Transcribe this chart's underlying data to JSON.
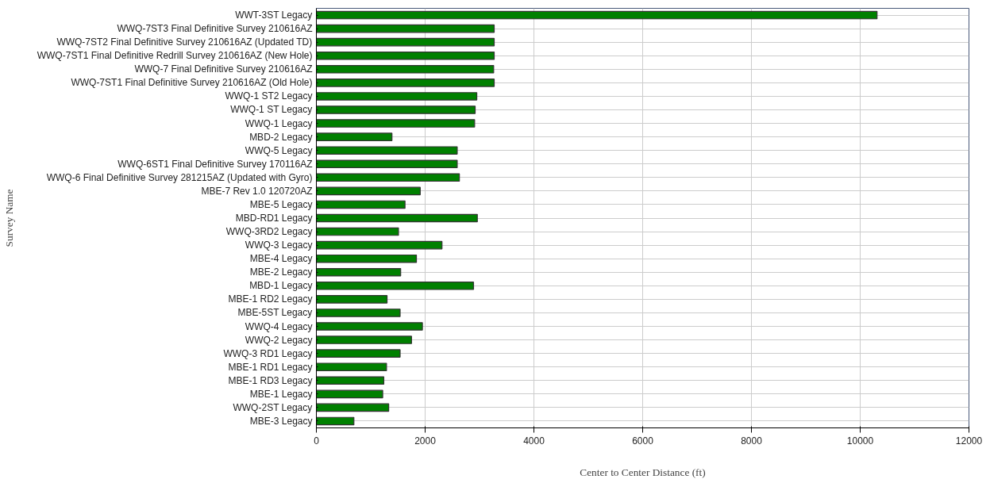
{
  "chart_data": {
    "type": "bar",
    "orientation": "horizontal",
    "xlabel": "Center to Center Distance (ft)",
    "ylabel": "Survey Name",
    "categories": [
      "WWT-3ST Legacy",
      "WWQ-7ST3 Final Definitive Survey 210616AZ",
      "WWQ-7ST2 Final Definitive Survey 210616AZ (Updated TD)",
      "WWQ-7ST1 Final Definitive Redrill Survey 210616AZ (New Hole)",
      "WWQ-7 Final Definitive Survey 210616AZ",
      "WWQ-7ST1 Final Definitive Survey 210616AZ (Old Hole)",
      "WWQ-1 ST2 Legacy",
      "WWQ-1 ST Legacy",
      "WWQ-1 Legacy",
      "MBD-2 Legacy",
      "WWQ-5 Legacy",
      "WWQ-6ST1 Final Definitive Survey 170116AZ",
      "WWQ-6 Final Definitive Survey 281215AZ (Updated with Gyro)",
      "MBE-7 Rev 1.0 120720AZ",
      "MBE-5 Legacy",
      "MBD-RD1 Legacy",
      "WWQ-3RD2 Legacy",
      "WWQ-3 Legacy",
      "MBE-4 Legacy",
      "MBE-2 Legacy",
      "MBD-1 Legacy",
      "MBE-1 RD2 Legacy",
      "MBE-5ST Legacy",
      "WWQ-4 Legacy",
      "WWQ-2 Legacy",
      "WWQ-3 RD1 Legacy",
      "MBE-1 RD1 Legacy",
      "MBE-1 RD3 Legacy",
      "MBE-1 Legacy",
      "WWQ-2ST Legacy",
      "MBE-3 Legacy"
    ],
    "series": [
      {
        "color": "#008000",
        "values": [
          10310,
          3270,
          3270,
          3270,
          3260,
          3270,
          2950,
          2920,
          2910,
          1390,
          2590,
          2590,
          2630,
          1910,
          1630,
          2960,
          1510,
          2310,
          1840,
          1550,
          2890,
          1300,
          1540,
          1950,
          1750,
          1540,
          1290,
          1240,
          1220,
          1330,
          690
        ]
      }
    ],
    "xlim": [
      0,
      12000
    ],
    "xticks": [
      0,
      2000,
      4000,
      6000,
      8000,
      10000,
      12000
    ],
    "grid": true
  }
}
